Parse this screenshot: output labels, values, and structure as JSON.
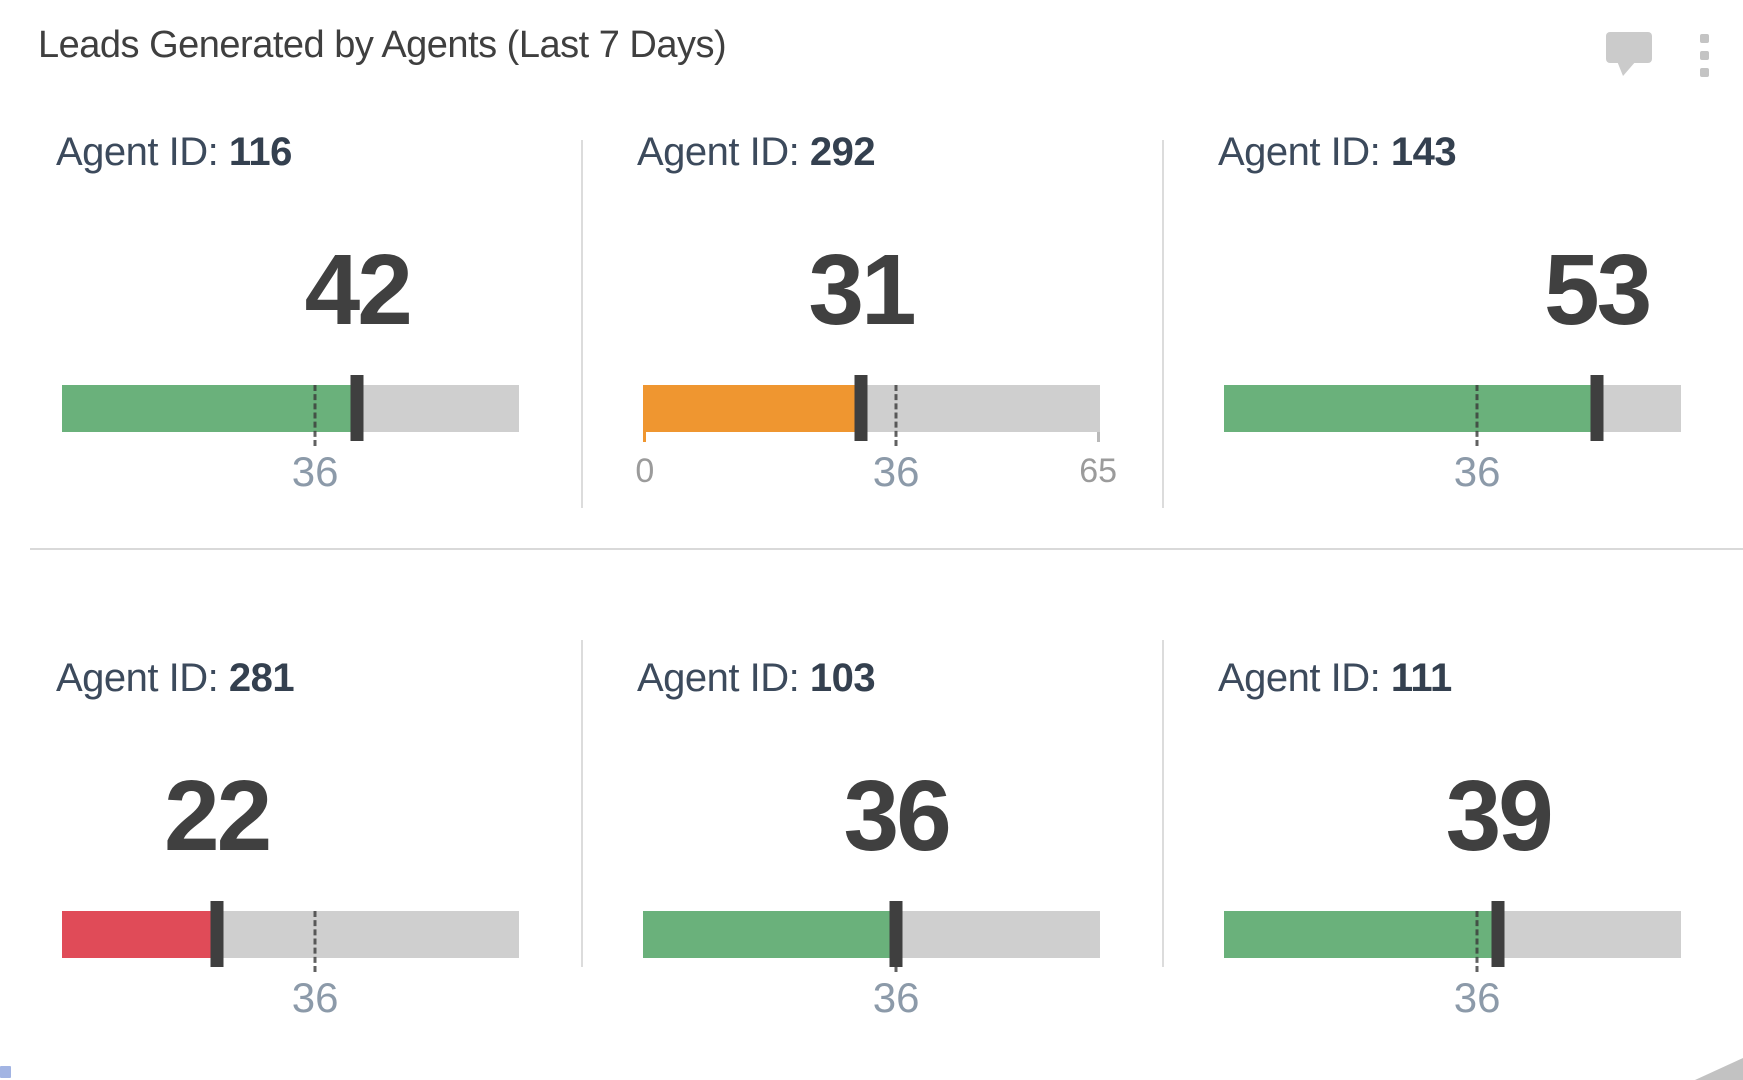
{
  "widget": {
    "title": "Leads Generated by Agents (Last 7 Days)"
  },
  "labels": {
    "agent_prefix": "Agent ID:"
  },
  "icons": {
    "comment": "comment-bubble-icon",
    "menu": "kebab-menu-icon"
  },
  "colors": {
    "green": "#6ab17b",
    "orange": "#ef9630",
    "red": "#e04b58",
    "track_gray": "#cfcfcf",
    "marker_dark": "#3f3f3f",
    "value_text": "#404040",
    "agent_text": "#3c4a5c",
    "target_text": "#8c9aa9",
    "minor_text": "#9b9b9b",
    "divider": "#d9d9d9"
  },
  "chart_data": {
    "type": "bar",
    "subtype": "bullet-kpi-grid",
    "title": "Leads Generated by Agents (Last 7 Days)",
    "axis_min": 0,
    "axis_max": 65,
    "target": 36,
    "min_label": "0",
    "target_label": "36",
    "max_label": "65",
    "legend": "none",
    "grid": "off",
    "cards": [
      {
        "agent_id": "116",
        "value": 42,
        "bar_color": "#6ab17b",
        "status": "above-target",
        "axis_labels": [
          "36"
        ]
      },
      {
        "agent_id": "292",
        "value": 31,
        "bar_color": "#ef9630",
        "status": "near-target",
        "axis_labels": [
          "0",
          "36",
          "65"
        ]
      },
      {
        "agent_id": "143",
        "value": 53,
        "bar_color": "#6ab17b",
        "status": "above-target",
        "axis_labels": [
          "36"
        ]
      },
      {
        "agent_id": "281",
        "value": 22,
        "bar_color": "#e04b58",
        "status": "below-target",
        "axis_labels": [
          "36"
        ]
      },
      {
        "agent_id": "103",
        "value": 36,
        "bar_color": "#6ab17b",
        "status": "at-target",
        "axis_labels": [
          "36"
        ]
      },
      {
        "agent_id": "111",
        "value": 39,
        "bar_color": "#6ab17b",
        "status": "above-target",
        "axis_labels": [
          "36"
        ]
      }
    ]
  }
}
